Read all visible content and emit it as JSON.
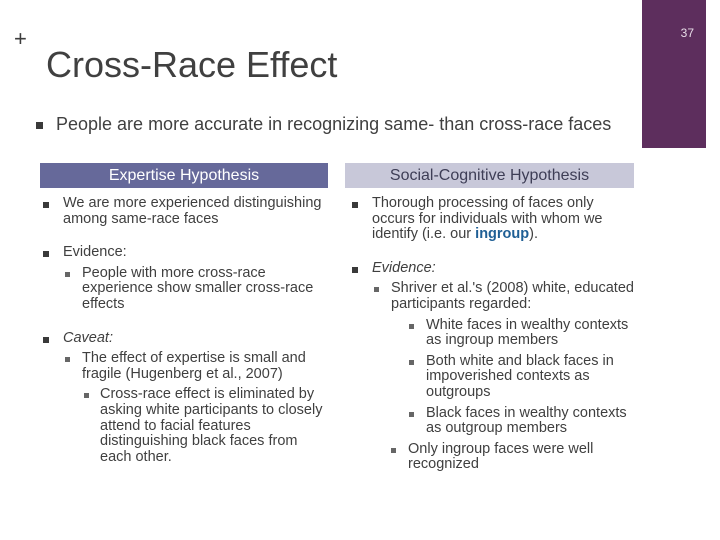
{
  "slide": {
    "plus": "+",
    "number": "37",
    "title": "Cross-Race Effect",
    "lead_bullet": "People are more accurate in recognizing same- than cross-race faces"
  },
  "left": {
    "header": "Expertise Hypothesis",
    "b1": "We are more experienced distinguishing among same-race faces",
    "b2": "Evidence:",
    "b2_sub": "People with more cross-race experience show smaller cross-race effects",
    "b3": "Caveat:",
    "b3_sub": "The effect of expertise is small and fragile (Hugenberg et al., 2007)",
    "b3_subsub": "Cross-race effect is eliminated by asking white participants to closely attend to facial features distinguishing black faces from each other."
  },
  "right": {
    "header": "Social-Cognitive Hypothesis",
    "b1_pre": "Thorough processing of faces only occurs for individuals with whom we identify (i.e. our ",
    "b1_kw": "ingroup",
    "b1_post": ").",
    "b2": "Evidence:",
    "b2_sub": "Shriver et al.'s (2008) white, educated participants regarded:",
    "b2_sub_items": [
      "White faces in wealthy contexts as ingroup members",
      "Both white and black faces in impoverished contexts as outgroups",
      "Black faces in wealthy contexts as outgroup members"
    ],
    "b2_sub2": "Only ingroup faces were well recognized"
  }
}
